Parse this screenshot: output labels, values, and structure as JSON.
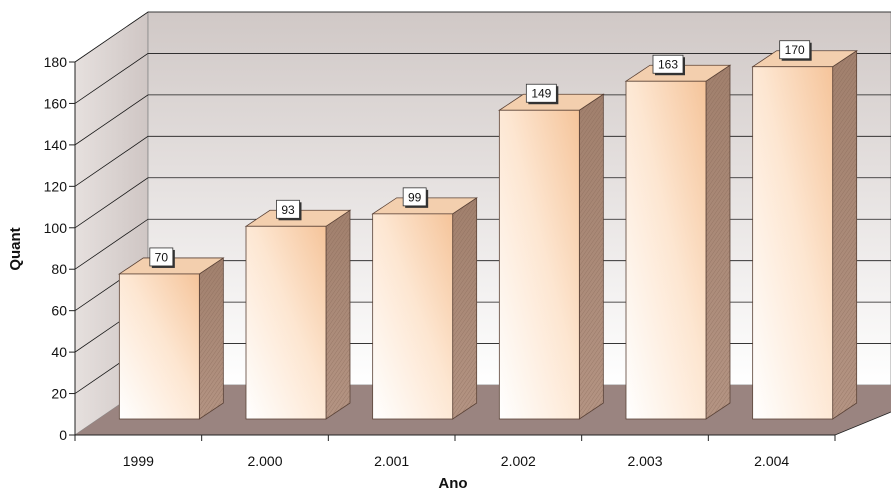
{
  "chart_data": {
    "type": "bar",
    "style": "3d-column",
    "categories": [
      "1999",
      "2.000",
      "2.001",
      "2.002",
      "2.003",
      "2.004"
    ],
    "values": [
      70,
      93,
      99,
      149,
      163,
      170
    ],
    "data_labels": [
      "70",
      "93",
      "99",
      "149",
      "163",
      "170"
    ],
    "xlabel": "Ano",
    "ylabel": "Quant",
    "ylim": [
      0,
      180
    ],
    "yticks": [
      0,
      20,
      40,
      60,
      80,
      100,
      120,
      140,
      160,
      180
    ],
    "ytick_labels": [
      "0",
      "20",
      "40",
      "60",
      "80",
      "100",
      "120",
      "140",
      "160",
      "180"
    ],
    "grid": true,
    "legend": "none",
    "colors": {
      "bar_front_light": "#ffffff",
      "bar_front_accent": "#f7c9a0",
      "bar_side": "#9c7a68",
      "bar_top": "#f3cfae",
      "floor": "#9a8480",
      "back_wall_top": "#d0c8c6",
      "back_wall_bottom": "#ffffff",
      "side_wall": "#d8d0ce",
      "gridline": "#1a1a1a"
    }
  }
}
